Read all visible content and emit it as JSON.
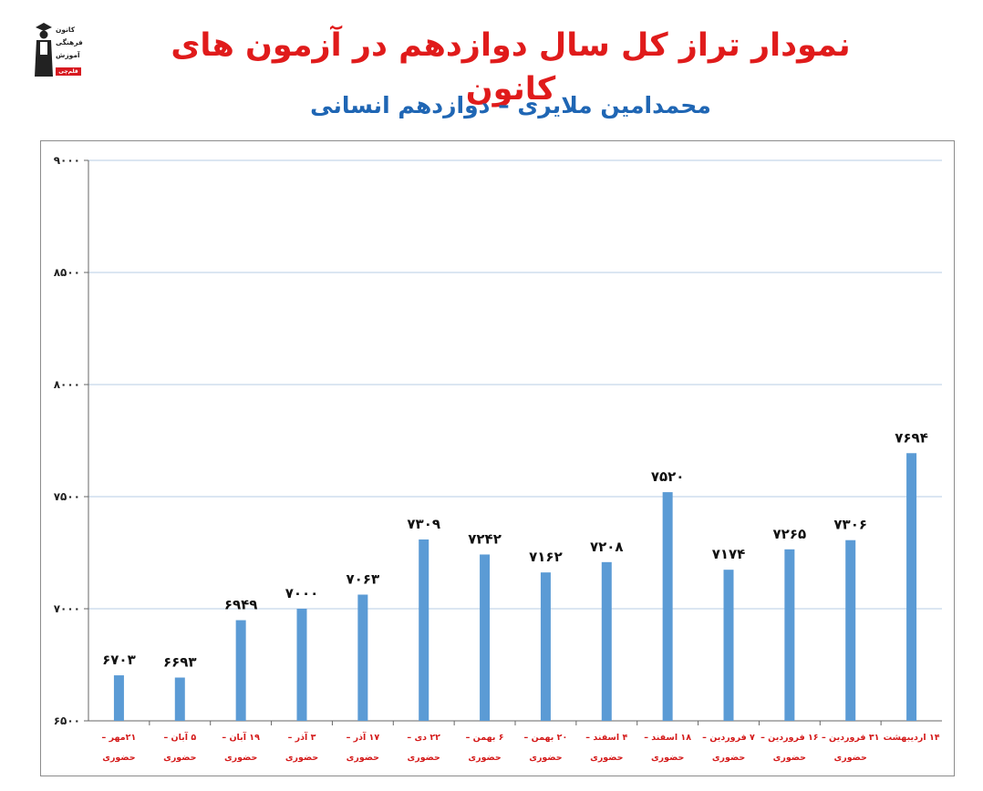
{
  "header": {
    "title": "نمودار تراز کل سال دوازدهم در آزمون های کانون",
    "subtitle": "محمدامین ملایری – دوازدهم انسانی"
  },
  "logo": {
    "line1": "کانون",
    "line2": "فرهنگی",
    "line3": "آموزش",
    "tag": "قلم‌چی"
  },
  "colors": {
    "title": "#e01b1b",
    "subtitle": "#1f66b4",
    "bar": "#5b9bd5",
    "grid": "#b7cde6",
    "xlabel": "#d41a1a"
  },
  "chart_data": {
    "type": "bar",
    "categories": [
      [
        "۲۱مهر –",
        "حضوری"
      ],
      [
        "۵ آبان –",
        "حضوری"
      ],
      [
        "۱۹ آبان –",
        "حضوری"
      ],
      [
        "۳ آذر –",
        "حضوری"
      ],
      [
        "۱۷ آذر –",
        "حضوری"
      ],
      [
        "۲۲ دی –",
        "حضوری"
      ],
      [
        "۶ بهمن –",
        "حضوری"
      ],
      [
        "۲۰ بهمن –",
        "حضوری"
      ],
      [
        "۴ اسفند –",
        "حضوری"
      ],
      [
        "۱۸ اسفند –",
        "حضوری"
      ],
      [
        "۷ فروردین –",
        "حضوری"
      ],
      [
        "۱۶ فروردین –",
        "حضوری"
      ],
      [
        "۳۱ فروردین –",
        "حضوری"
      ],
      [
        "۱۴ اردیبهشت",
        ""
      ]
    ],
    "values": [
      6703,
      6693,
      6949,
      7000,
      7063,
      7309,
      7242,
      7162,
      7208,
      7520,
      7174,
      7265,
      7306,
      7694
    ],
    "value_labels": [
      "۶۷۰۳",
      "۶۶۹۳",
      "۶۹۴۹",
      "۷۰۰۰",
      "۷۰۶۳",
      "۷۳۰۹",
      "۷۲۴۲",
      "۷۱۶۲",
      "۷۲۰۸",
      "۷۵۲۰",
      "۷۱۷۴",
      "۷۲۶۵",
      "۷۳۰۶",
      "۷۶۹۴"
    ],
    "yticks": [
      6500,
      7000,
      7500,
      8000,
      8500,
      9000
    ],
    "ytick_labels": [
      "۶۵۰۰",
      "۷۰۰۰",
      "۷۵۰۰",
      "۸۰۰۰",
      "۸۵۰۰",
      "۹۰۰۰"
    ],
    "ylim": [
      6500,
      9000
    ],
    "grid": true
  }
}
